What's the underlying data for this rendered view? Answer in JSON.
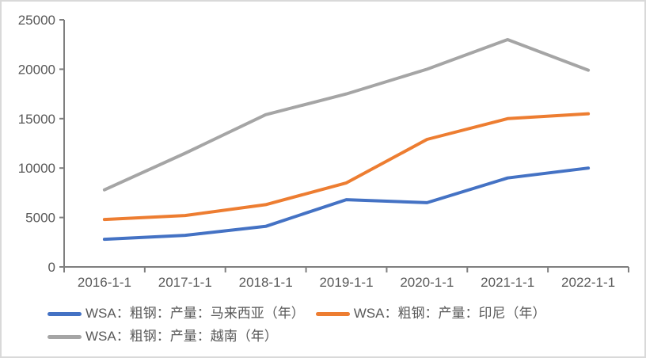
{
  "chart_data": {
    "type": "line",
    "title": "",
    "xlabel": "",
    "ylabel": "",
    "categories": [
      "2016-1-1",
      "2017-1-1",
      "2018-1-1",
      "2019-1-1",
      "2020-1-1",
      "2021-1-1",
      "2022-1-1"
    ],
    "series": [
      {
        "name": "WSA：粗钢：产量：马来西亚（年）",
        "color": "#4472C4",
        "values": [
          2800,
          3200,
          4100,
          6800,
          6500,
          9000,
          10000
        ]
      },
      {
        "name": "WSA：粗钢：产量：印尼（年）",
        "color": "#ED7D31",
        "values": [
          4800,
          5200,
          6300,
          8500,
          12900,
          15000,
          15500
        ]
      },
      {
        "name": "WSA：粗钢：产量：越南（年）",
        "color": "#A5A5A5",
        "values": [
          7800,
          11500,
          15400,
          17500,
          20000,
          23000,
          19900
        ]
      }
    ],
    "ylim": [
      0,
      25000
    ],
    "ytick_step": 5000,
    "ytick_labels": [
      "0",
      "5000",
      "10000",
      "15000",
      "20000",
      "25000"
    ],
    "grid": false,
    "legend_position": "bottom"
  },
  "styles": {
    "background": "#ffffff",
    "border_color": "#d9d9d9",
    "axis_color": "#7f7f7f",
    "tick_label_color": "#595959",
    "legend_text_color": "#595959",
    "line_width": 4
  }
}
